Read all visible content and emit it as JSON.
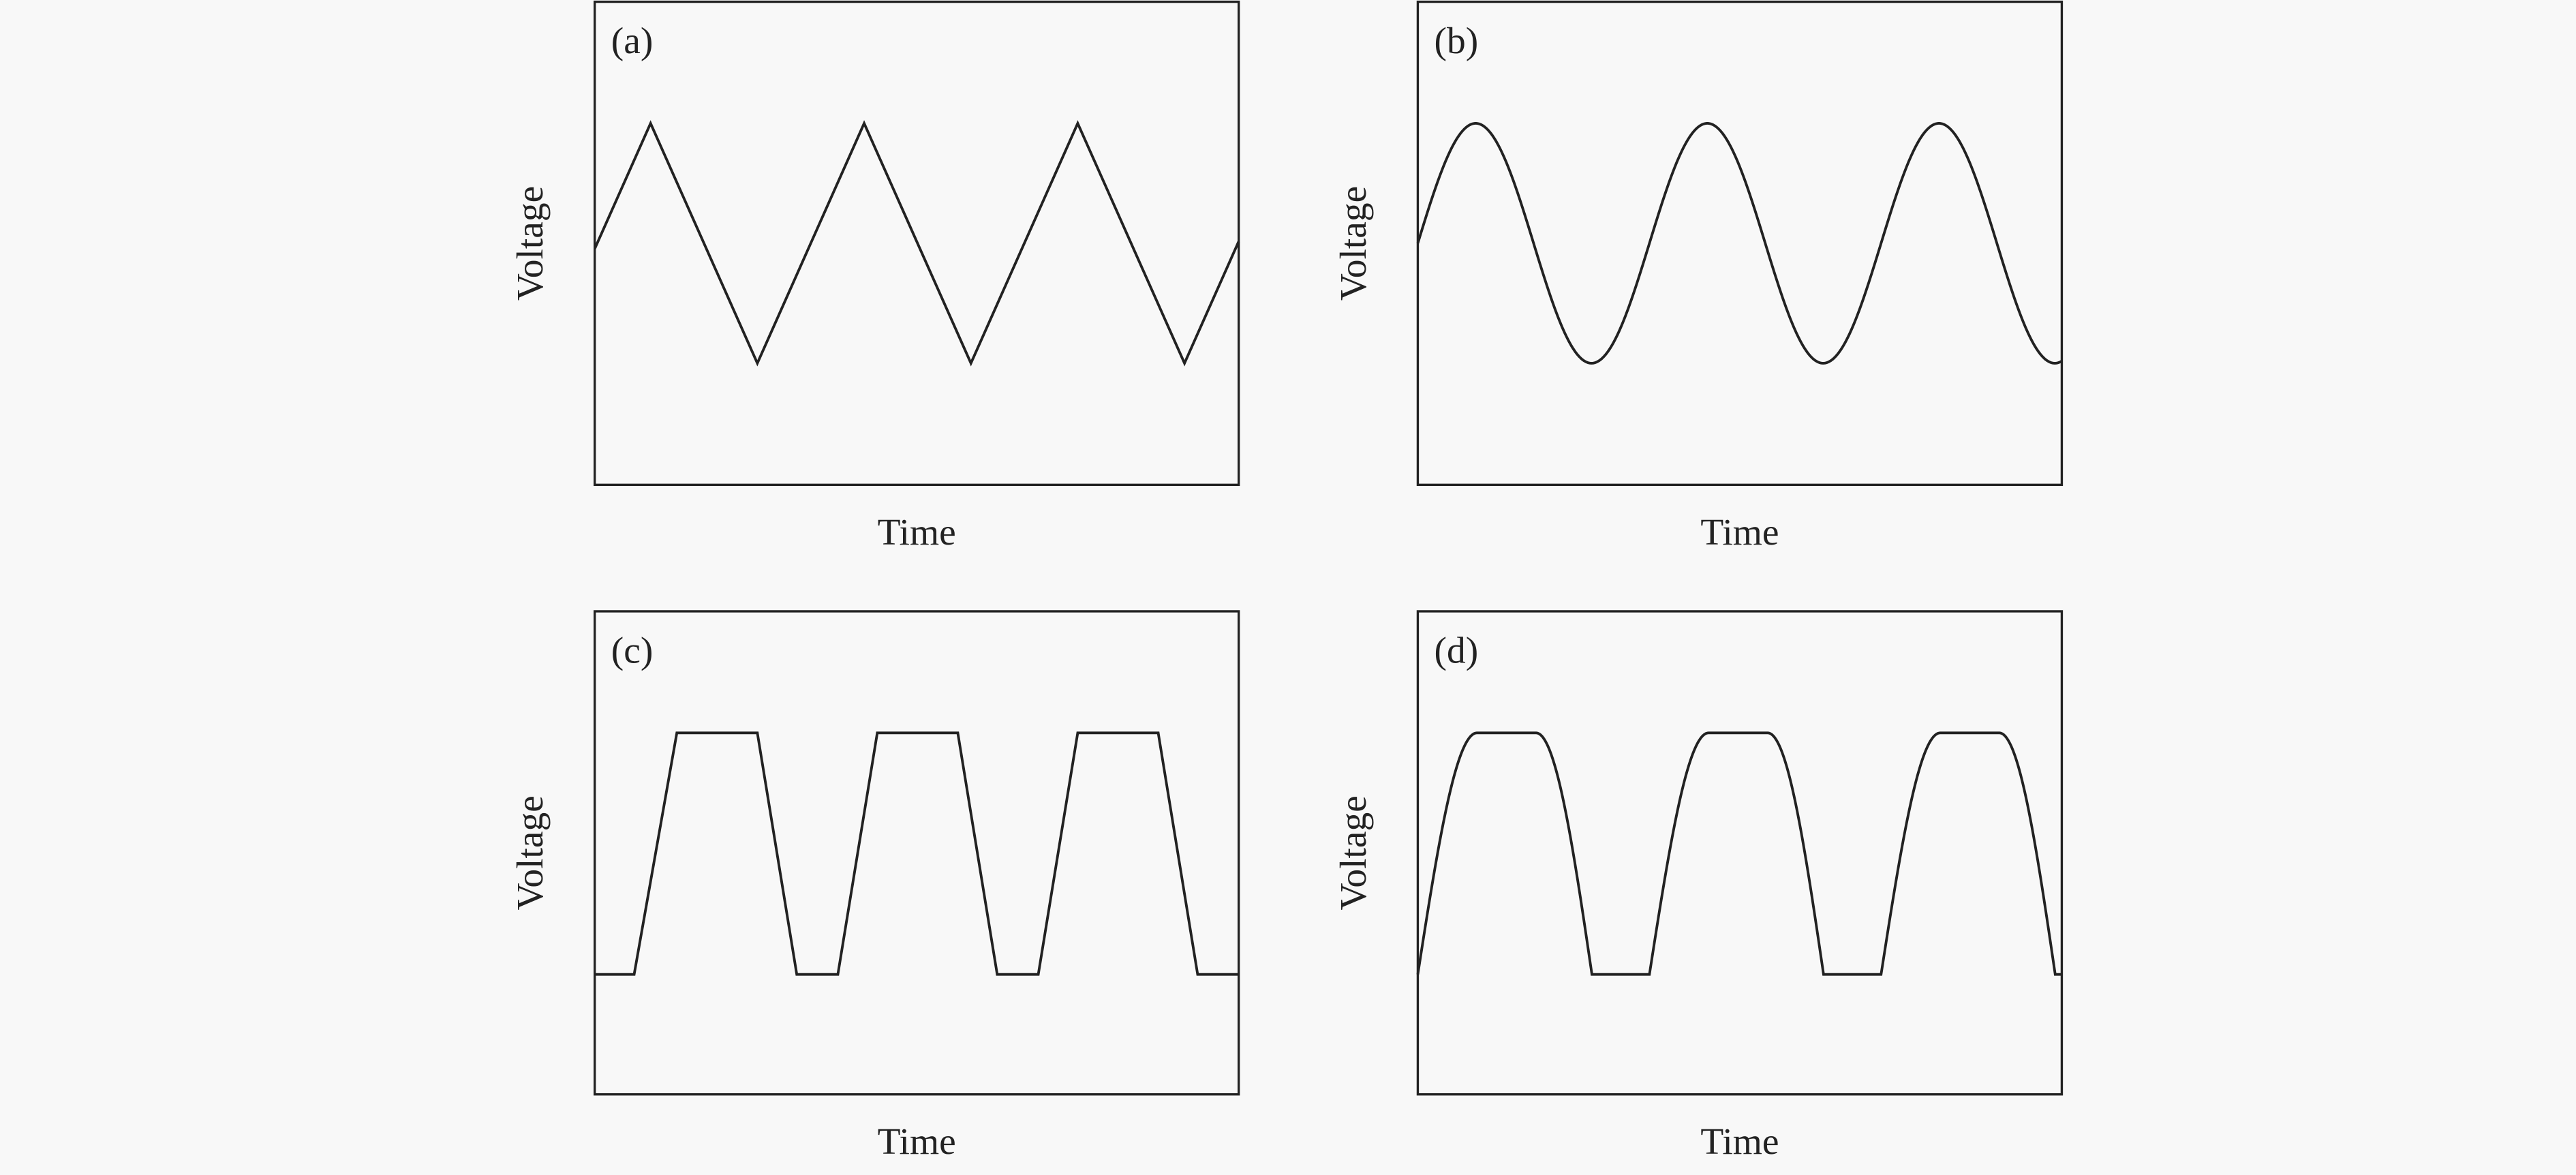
{
  "panels": [
    {
      "label": "(a)",
      "ylabel": "Voltage",
      "xlabel": "Time"
    },
    {
      "label": "(b)",
      "ylabel": "Voltage",
      "xlabel": "Time"
    },
    {
      "label": "(c)",
      "ylabel": "Voltage",
      "xlabel": "Time"
    },
    {
      "label": "(d)",
      "ylabel": "Voltage",
      "xlabel": "Time"
    }
  ]
}
